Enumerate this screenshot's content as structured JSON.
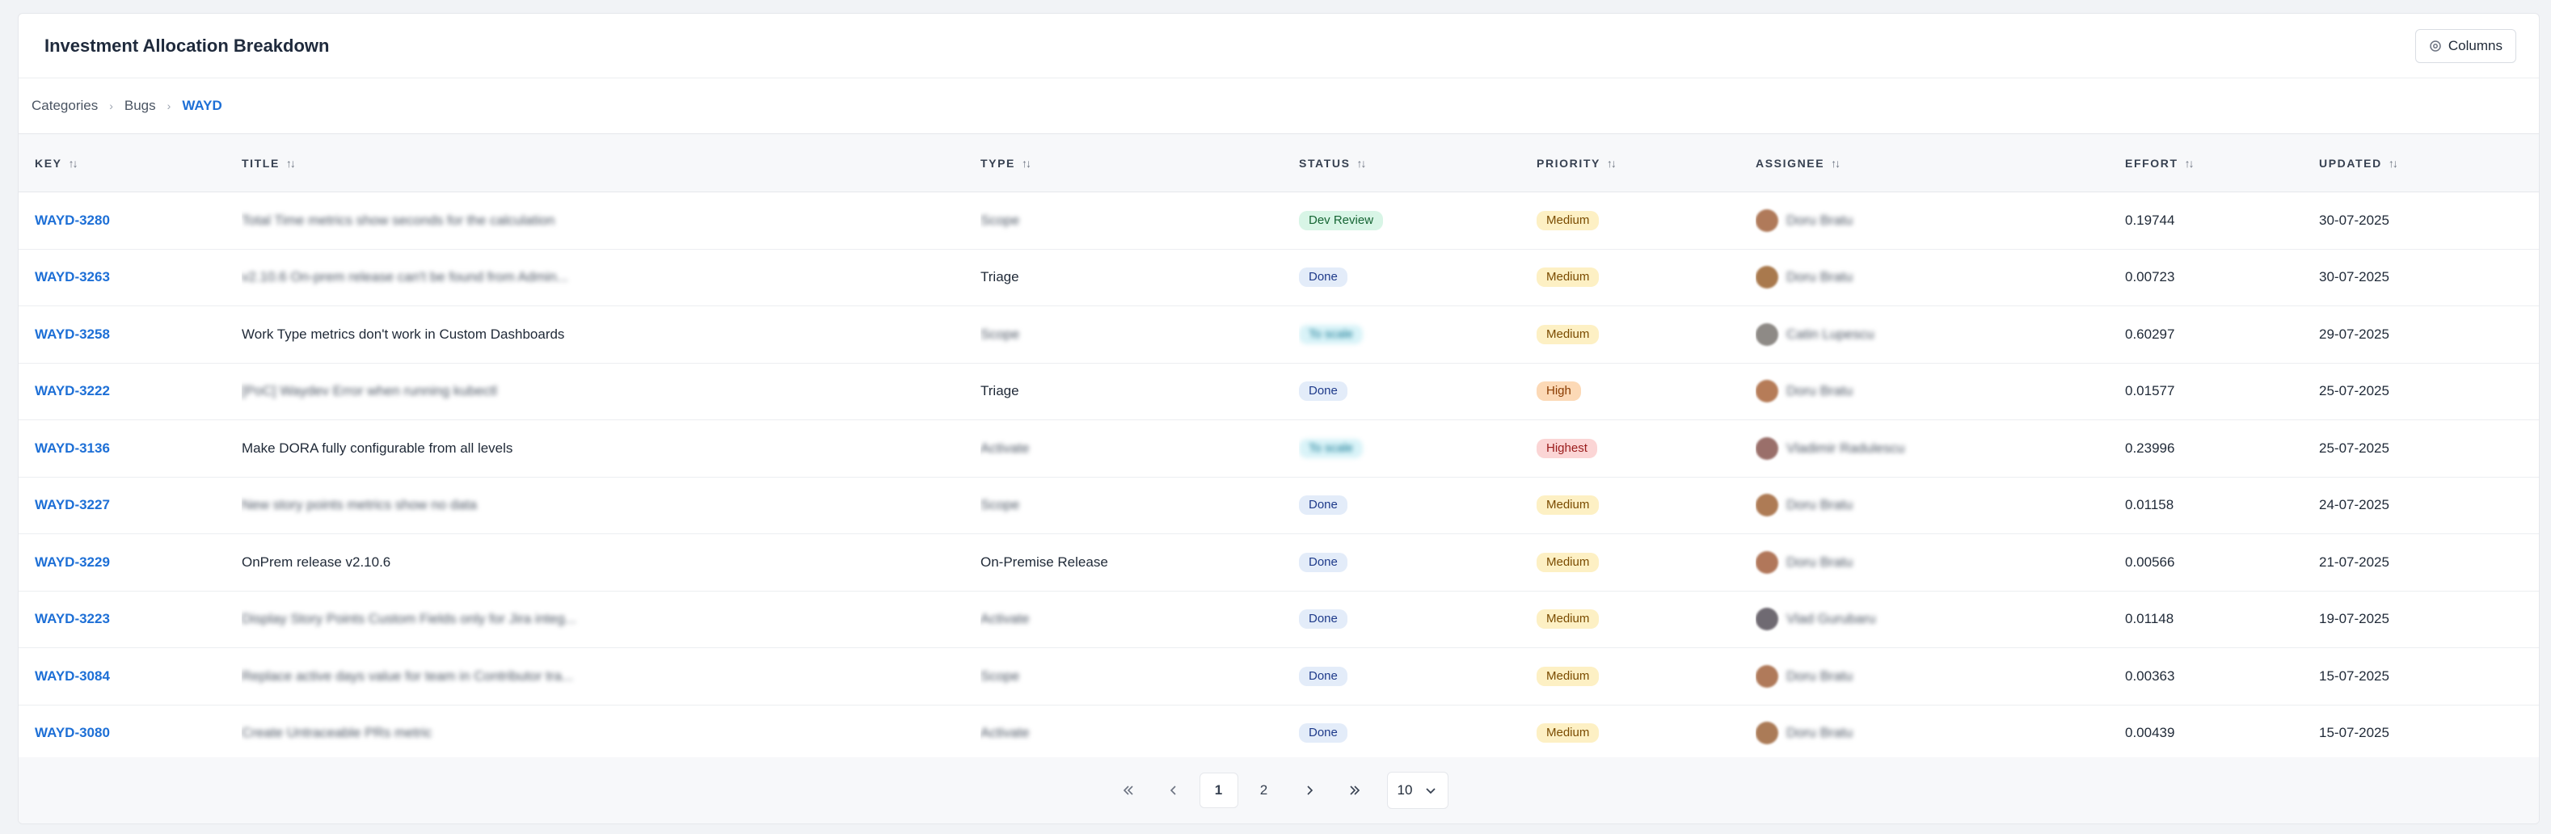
{
  "header": {
    "title": "Investment Allocation Breakdown",
    "columns_label": "Columns"
  },
  "breadcrumb": [
    "Categories",
    "Bugs",
    "WAYD"
  ],
  "columns": [
    "KEY",
    "TITLE",
    "TYPE",
    "STATUS",
    "PRIORITY",
    "ASSIGNEE",
    "EFFORT",
    "UPDATED"
  ],
  "rows": [
    {
      "key": "WAYD-3280",
      "title": "Total Time metrics show seconds for the calculation",
      "title_blur": true,
      "type": "Scope",
      "type_blur": true,
      "status": "Dev Review",
      "status_style": "dev",
      "status_blur": false,
      "priority": "Medium",
      "priority_style": "medium",
      "assignee": "Doru Bratu",
      "avatar_color": "#b07a5a",
      "effort": "0.19744",
      "updated": "30-07-2025"
    },
    {
      "key": "WAYD-3263",
      "title": "v2.10.6 On-prem release can't be found from Admin...",
      "title_blur": true,
      "type": "Triage",
      "type_blur": false,
      "status": "Done",
      "status_style": "done",
      "status_blur": false,
      "priority": "Medium",
      "priority_style": "medium",
      "assignee": "Doru Bratu",
      "avatar_color": "#a9794d",
      "effort": "0.00723",
      "updated": "30-07-2025"
    },
    {
      "key": "WAYD-3258",
      "title": "Work Type metrics don't work in Custom Dashboards",
      "title_blur": false,
      "type": "Scope",
      "type_blur": true,
      "status": "To scale",
      "status_style": "scope",
      "status_blur": true,
      "priority": "Medium",
      "priority_style": "medium",
      "assignee": "Catin Lupescu",
      "avatar_color": "#8e8a86",
      "effort": "0.60297",
      "updated": "29-07-2025"
    },
    {
      "key": "WAYD-3222",
      "title": "[PoC] Waydev Error when running kubectl",
      "title_blur": true,
      "type": "Triage",
      "type_blur": false,
      "status": "Done",
      "status_style": "done",
      "status_blur": false,
      "priority": "High",
      "priority_style": "high",
      "assignee": "Doru Bratu",
      "avatar_color": "#b67c58",
      "effort": "0.01577",
      "updated": "25-07-2025"
    },
    {
      "key": "WAYD-3136",
      "title": "Make DORA fully configurable from all levels",
      "title_blur": false,
      "type": "Activate",
      "type_blur": true,
      "status": "To scale",
      "status_style": "scope",
      "status_blur": true,
      "priority": "Highest",
      "priority_style": "highest",
      "assignee": "Vladimir Radulescu",
      "avatar_color": "#9a6f6a",
      "effort": "0.23996",
      "updated": "25-07-2025"
    },
    {
      "key": "WAYD-3227",
      "title": "New story points metrics show no data",
      "title_blur": true,
      "type": "Scope",
      "type_blur": true,
      "status": "Done",
      "status_style": "done",
      "status_blur": false,
      "priority": "Medium",
      "priority_style": "medium",
      "assignee": "Doru Bratu",
      "avatar_color": "#ae7b55",
      "effort": "0.01158",
      "updated": "24-07-2025"
    },
    {
      "key": "WAYD-3229",
      "title": "OnPrem release v2.10.6",
      "title_blur": false,
      "type": "On-Premise Release",
      "type_blur": false,
      "status": "Done",
      "status_style": "done",
      "status_blur": false,
      "priority": "Medium",
      "priority_style": "medium",
      "assignee": "Doru Bratu",
      "avatar_color": "#b1775a",
      "effort": "0.00566",
      "updated": "21-07-2025"
    },
    {
      "key": "WAYD-3223",
      "title": "Display Story Points Custom Fields only for Jira integ...",
      "title_blur": true,
      "type": "Activate",
      "type_blur": true,
      "status": "Done",
      "status_style": "done",
      "status_blur": false,
      "priority": "Medium",
      "priority_style": "medium",
      "assignee": "Vlad Gurubaru",
      "avatar_color": "#6f6a72",
      "effort": "0.01148",
      "updated": "19-07-2025"
    },
    {
      "key": "WAYD-3084",
      "title": "Replace active days value for team in Contributor tra...",
      "title_blur": true,
      "type": "Scope",
      "type_blur": true,
      "status": "Done",
      "status_style": "done",
      "status_blur": false,
      "priority": "Medium",
      "priority_style": "medium",
      "assignee": "Doru Bratu",
      "avatar_color": "#b07a5a",
      "effort": "0.00363",
      "updated": "15-07-2025"
    },
    {
      "key": "WAYD-3080",
      "title": "Create Untraceable PRs metric",
      "title_blur": true,
      "type": "Activate",
      "type_blur": true,
      "status": "Done",
      "status_style": "done",
      "status_blur": false,
      "priority": "Medium",
      "priority_style": "medium",
      "assignee": "Doru Bratu",
      "avatar_color": "#ab7b57",
      "effort": "0.00439",
      "updated": "15-07-2025"
    }
  ],
  "pagination": {
    "pages": [
      "1",
      "2"
    ],
    "current": "1",
    "page_size": "10"
  },
  "icons": {
    "first": "chevrons-left-icon",
    "prev": "chevron-left-icon",
    "next": "chevron-right-icon",
    "last": "chevrons-right-icon",
    "select": "chevron-down-icon",
    "columns": "gear-icon",
    "sort": "sort-icon"
  }
}
